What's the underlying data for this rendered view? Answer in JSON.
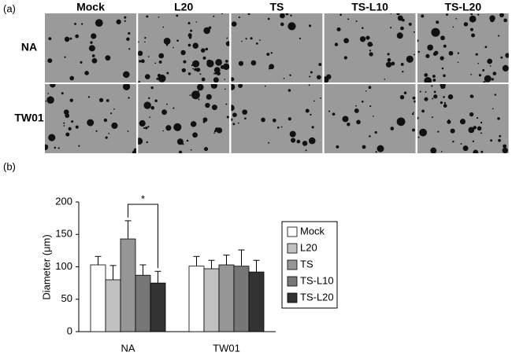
{
  "panel_a": {
    "label": "(a)",
    "columns": [
      "Mock",
      "L20",
      "TS",
      "TS-L10",
      "TS-L20"
    ],
    "rows": [
      "NA",
      "TW01"
    ]
  },
  "chart_data": {
    "type": "bar",
    "label": "(b)",
    "y_label": "Diameter (μm)",
    "categories": [
      "NA",
      "TW01"
    ],
    "series": [
      {
        "name": "Mock",
        "color": "#ffffff",
        "values": [
          103,
          101
        ],
        "errors": [
          13,
          15
        ]
      },
      {
        "name": "L20",
        "color": "#c0c0c0",
        "values": [
          80,
          97
        ],
        "errors": [
          22,
          13
        ]
      },
      {
        "name": "TS",
        "color": "#969696",
        "values": [
          143,
          103
        ],
        "errors": [
          28,
          15
        ]
      },
      {
        "name": "TS-L10",
        "color": "#777777",
        "values": [
          87,
          101
        ],
        "errors": [
          16,
          25
        ]
      },
      {
        "name": "TS-L20",
        "color": "#333333",
        "values": [
          75,
          92
        ],
        "errors": [
          18,
          18
        ]
      }
    ],
    "ylim": [
      0,
      200
    ],
    "yticks": [
      0,
      50,
      100,
      150,
      200
    ],
    "annotation": "*"
  }
}
